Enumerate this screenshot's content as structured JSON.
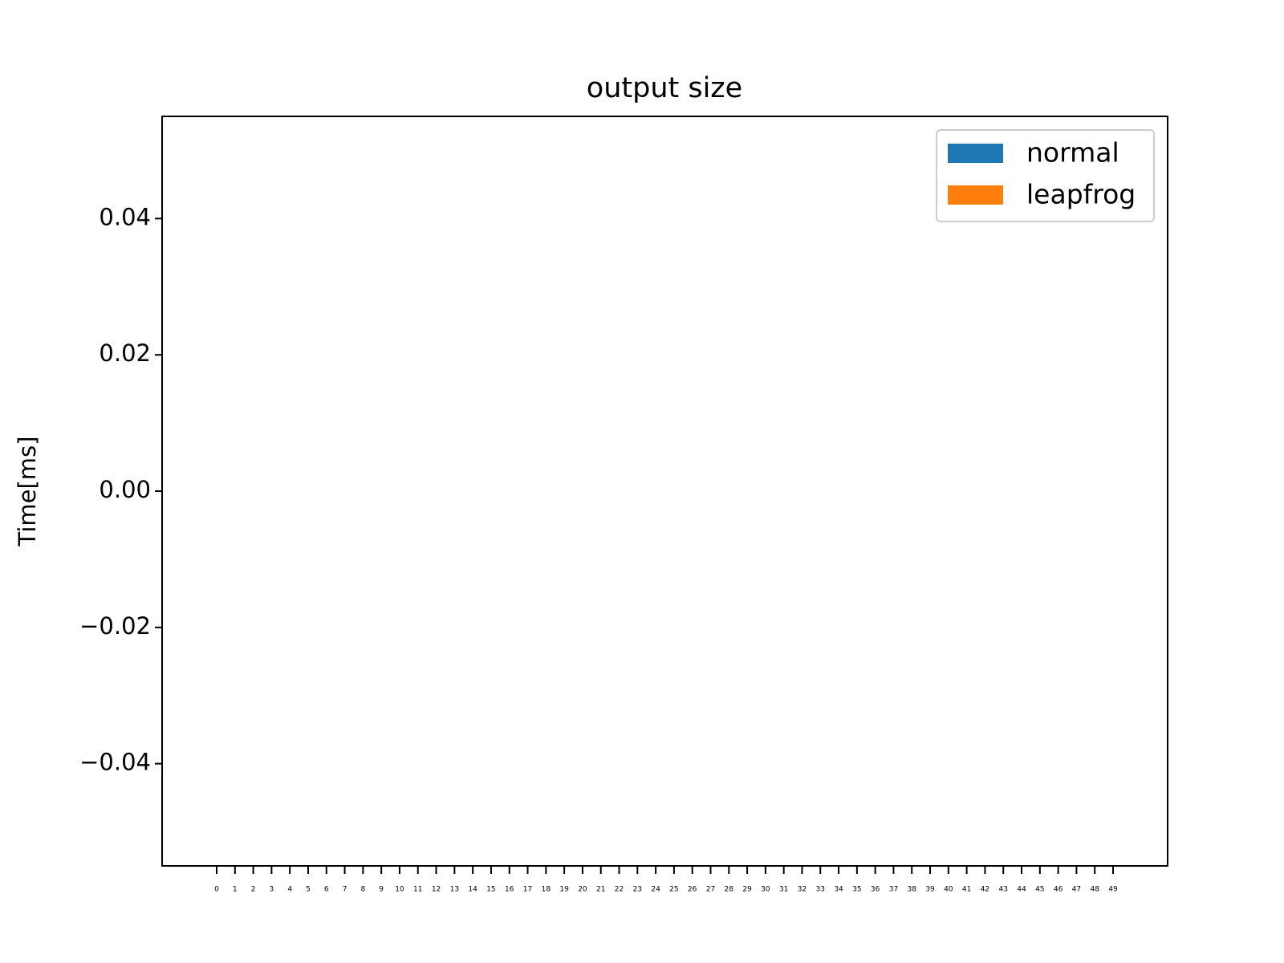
{
  "chart_data": {
    "type": "bar",
    "title": "output size",
    "y_label": "Time[ms]",
    "categories": [
      "0",
      "1",
      "2",
      "3",
      "4",
      "5",
      "6",
      "7",
      "8",
      "9",
      "10",
      "11",
      "12",
      "13",
      "14",
      "15",
      "16",
      "17",
      "18",
      "19",
      "20",
      "21",
      "22",
      "23",
      "24",
      "25",
      "26",
      "27",
      "28",
      "29",
      "30",
      "31",
      "32",
      "33",
      "34",
      "35",
      "36",
      "37",
      "38",
      "39",
      "40",
      "41",
      "42",
      "43",
      "44",
      "45",
      "46",
      "47",
      "48",
      "49"
    ],
    "series": [
      {
        "name": "normal",
        "color": "#1f77b4",
        "values": [
          0,
          0,
          0,
          0,
          0,
          0,
          0,
          0,
          0,
          0,
          0,
          0,
          0,
          0,
          0,
          0,
          0,
          0,
          0,
          0,
          0,
          0,
          0,
          0,
          0,
          0,
          0,
          0,
          0,
          0,
          0,
          0,
          0,
          0,
          0,
          0,
          0,
          0,
          0,
          0,
          0,
          0,
          0,
          0,
          0,
          0,
          0,
          0,
          0,
          0
        ]
      },
      {
        "name": "leapfrog",
        "color": "#ff7f0e",
        "values": [
          0,
          0,
          0,
          0,
          0,
          0,
          0,
          0,
          0,
          0,
          0,
          0,
          0,
          0,
          0,
          0,
          0,
          0,
          0,
          0,
          0,
          0,
          0,
          0,
          0,
          0,
          0,
          0,
          0,
          0,
          0,
          0,
          0,
          0,
          0,
          0,
          0,
          0,
          0,
          0,
          0,
          0,
          0,
          0,
          0,
          0,
          0,
          0,
          0,
          0
        ]
      }
    ],
    "ylim": [
      -0.055,
      0.055
    ],
    "yticks": [
      {
        "value": -0.04,
        "label": "−0.04"
      },
      {
        "value": -0.02,
        "label": "−0.02"
      },
      {
        "value": 0,
        "label": "0.00"
      },
      0.02,
      0.04
    ],
    "legend": "upper right",
    "grid": false
  }
}
